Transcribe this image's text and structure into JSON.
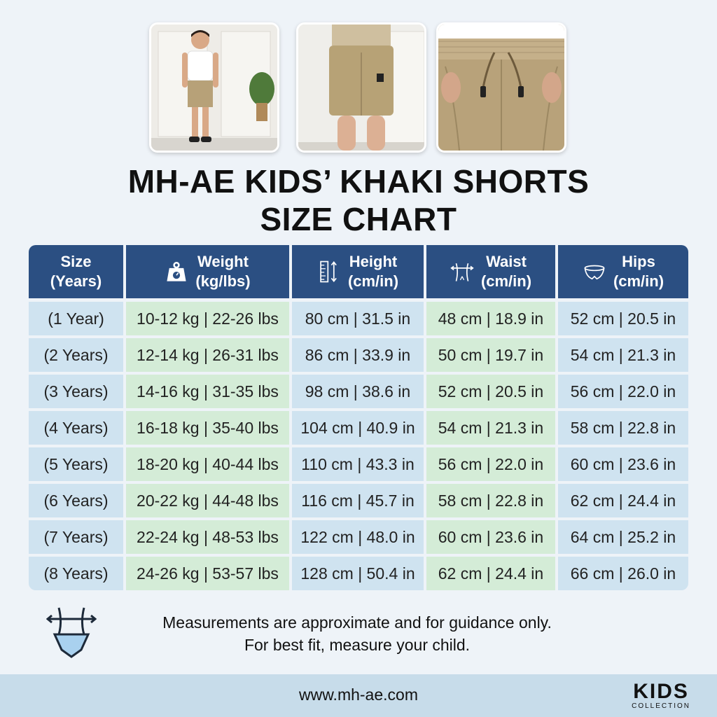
{
  "photos": [
    {
      "icon": "boy-standing-photo"
    },
    {
      "icon": "shorts-back-photo"
    },
    {
      "icon": "shorts-waistband-photo"
    }
  ],
  "title": {
    "line1": "MH-AE KIDS’ KHAKI SHORTS",
    "line2": "SIZE CHART"
  },
  "table": {
    "headers": [
      {
        "line1": "Size",
        "line2": "(Years)",
        "icon": ""
      },
      {
        "line1": "Weight",
        "line2": "(kg/lbs)",
        "icon": "weight-icon"
      },
      {
        "line1": "Height",
        "line2": "(cm/in)",
        "icon": "ruler-icon"
      },
      {
        "line1": "Waist",
        "line2": "(cm/in)",
        "icon": "waist-icon"
      },
      {
        "line1": "Hips",
        "line2": "(cm/in)",
        "icon": "hips-icon"
      }
    ],
    "rows": [
      [
        "(1 Year)",
        "10-12 kg | 22-26 lbs",
        "80 cm | 31.5 in",
        "48 cm | 18.9 in",
        "52 cm | 20.5 in"
      ],
      [
        "(2 Years)",
        "12-14 kg | 26-31 lbs",
        "86 cm | 33.9 in",
        "50 cm | 19.7 in",
        "54 cm | 21.3 in"
      ],
      [
        "(3 Years)",
        "14-16 kg | 31-35 lbs",
        "98 cm | 38.6 in",
        "52 cm | 20.5 in",
        "56 cm | 22.0 in"
      ],
      [
        "(4 Years)",
        "16-18 kg | 35-40 lbs",
        "104 cm | 40.9 in",
        "54 cm | 21.3 in",
        "58 cm | 22.8 in"
      ],
      [
        "(5 Years)",
        "18-20 kg | 40-44 lbs",
        "110 cm | 43.3 in",
        "56 cm | 22.0 in",
        "60 cm | 23.6 in"
      ],
      [
        "(6 Years)",
        "20-22 kg | 44-48 lbs",
        "116 cm | 45.7 in",
        "58 cm | 22.8 in",
        "62 cm | 24.4 in"
      ],
      [
        "(7 Years)",
        "22-24 kg | 48-53 lbs",
        "122 cm | 48.0 in",
        "60 cm | 23.6 in",
        "64 cm | 25.2 in"
      ],
      [
        "(8 Years)",
        "24-26 kg | 53-57 lbs",
        "128 cm | 50.4 in",
        "62 cm | 24.4 in",
        "66 cm | 26.0 in"
      ]
    ]
  },
  "note": {
    "icon": "measuring-body-icon",
    "line1": "Measurements are approximate and for guidance only.",
    "line2": "For best fit, measure your child."
  },
  "footer": {
    "url": "www.mh-ae.com",
    "brand_main": "KIDS",
    "brand_sub": "COLLECTION"
  },
  "colors": {
    "header_bg": "#2b4f82",
    "cell_blue": "#cfe3f0",
    "cell_green": "#d4ecd7",
    "footer_bg": "#c7dcea"
  }
}
